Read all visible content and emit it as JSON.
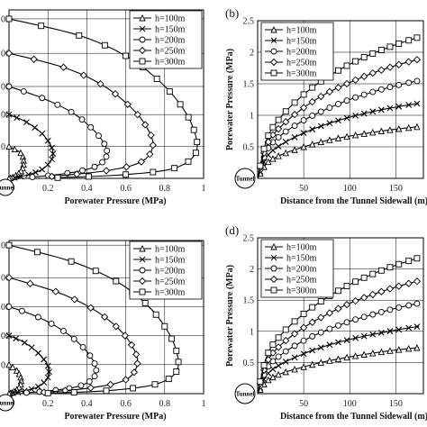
{
  "panel_labels": [
    "(b)",
    "(d)"
  ],
  "tunnel_label": "Tunnel",
  "chart_data": [
    {
      "panel": "a",
      "type": "line",
      "xlabel": "Porewater Pressure (MPa)",
      "ylabel": "",
      "xlim": [
        0,
        1
      ],
      "x_ticks": [
        "0.2",
        "0.4",
        "0.6",
        "0.8",
        "1"
      ],
      "y_ticks": [
        "00",
        "00",
        "00",
        "00",
        "0"
      ],
      "legend_position": "top-right",
      "series": [
        {
          "name": "h=100m",
          "marker": "triangle",
          "points": [
            [
              0,
              0.25
            ],
            [
              0.06,
              0.2
            ],
            [
              0.075,
              0.14
            ],
            [
              0.07,
              0.08
            ],
            [
              0.05,
              0.04
            ],
            [
              0.02,
              0.01
            ],
            [
              0,
              0
            ]
          ]
        },
        {
          "name": "h=150m",
          "marker": "x",
          "points": [
            [
              0,
              0.5
            ],
            [
              0.09,
              0.44
            ],
            [
              0.17,
              0.35
            ],
            [
              0.22,
              0.24
            ],
            [
              0.22,
              0.15
            ],
            [
              0.17,
              0.07
            ],
            [
              0.1,
              0.03
            ],
            [
              0.03,
              0.005
            ]
          ]
        },
        {
          "name": "h=200m",
          "marker": "circle",
          "points": [
            [
              0,
              0.72
            ],
            [
              0.17,
              0.63
            ],
            [
              0.32,
              0.52
            ],
            [
              0.42,
              0.4
            ],
            [
              0.49,
              0.27
            ],
            [
              0.5,
              0.17
            ],
            [
              0.44,
              0.09
            ],
            [
              0.3,
              0.04
            ],
            [
              0.12,
              0.01
            ]
          ]
        },
        {
          "name": "h=250m",
          "marker": "diamond",
          "points": [
            [
              0,
              0.98
            ],
            [
              0.28,
              0.87
            ],
            [
              0.47,
              0.74
            ],
            [
              0.61,
              0.58
            ],
            [
              0.7,
              0.42
            ],
            [
              0.74,
              0.26
            ],
            [
              0.68,
              0.13
            ],
            [
              0.5,
              0.06
            ],
            [
              0.22,
              0.015
            ]
          ]
        },
        {
          "name": "h=300m",
          "marker": "square",
          "points": [
            [
              0,
              1.25
            ],
            [
              0.36,
              1.12
            ],
            [
              0.6,
              0.96
            ],
            [
              0.76,
              0.78
            ],
            [
              0.88,
              0.58
            ],
            [
              0.95,
              0.38
            ],
            [
              0.96,
              0.2
            ],
            [
              0.85,
              0.08
            ],
            [
              0.6,
              0.03
            ],
            [
              0.25,
              0.005
            ]
          ]
        }
      ]
    },
    {
      "panel": "b",
      "type": "line",
      "xlabel": "Distance from the Tunnel Sidewall (m)",
      "ylabel": "Porewater Pressure (MPa)",
      "xlim": [
        0,
        180
      ],
      "ylim": [
        0,
        2.5
      ],
      "x_ticks": [
        "0",
        "50",
        "100",
        "150"
      ],
      "y_ticks": [
        "0",
        "0.5",
        "1",
        "1.5",
        "2",
        "2.5"
      ],
      "legend_position": "top-left",
      "series": [
        {
          "name": "h=100m",
          "marker": "triangle",
          "points": [
            [
              0,
              0
            ],
            [
              10,
              0.24
            ],
            [
              25,
              0.37
            ],
            [
              50,
              0.5
            ],
            [
              75,
              0.6
            ],
            [
              100,
              0.67
            ],
            [
              125,
              0.73
            ],
            [
              150,
              0.78
            ],
            [
              175,
              0.82
            ]
          ]
        },
        {
          "name": "h=150m",
          "marker": "x",
          "points": [
            [
              0,
              0
            ],
            [
              10,
              0.34
            ],
            [
              25,
              0.53
            ],
            [
              50,
              0.72
            ],
            [
              75,
              0.86
            ],
            [
              100,
              0.97
            ],
            [
              125,
              1.06
            ],
            [
              150,
              1.13
            ],
            [
              175,
              1.19
            ]
          ]
        },
        {
          "name": "h=200m",
          "marker": "circle",
          "points": [
            [
              0,
              0
            ],
            [
              10,
              0.44
            ],
            [
              25,
              0.68
            ],
            [
              50,
              0.92
            ],
            [
              75,
              1.1
            ],
            [
              100,
              1.25
            ],
            [
              125,
              1.37
            ],
            [
              150,
              1.47
            ],
            [
              175,
              1.55
            ]
          ]
        },
        {
          "name": "h=250m",
          "marker": "diamond",
          "points": [
            [
              0,
              0
            ],
            [
              10,
              0.53
            ],
            [
              25,
              0.82
            ],
            [
              50,
              1.12
            ],
            [
              75,
              1.35
            ],
            [
              100,
              1.52
            ],
            [
              125,
              1.67
            ],
            [
              150,
              1.79
            ],
            [
              175,
              1.89
            ]
          ]
        },
        {
          "name": "h=300m",
          "marker": "square",
          "points": [
            [
              0,
              0
            ],
            [
              10,
              0.62
            ],
            [
              25,
              0.97
            ],
            [
              50,
              1.33
            ],
            [
              75,
              1.6
            ],
            [
              100,
              1.81
            ],
            [
              125,
              1.98
            ],
            [
              150,
              2.12
            ],
            [
              175,
              2.24
            ]
          ]
        }
      ]
    },
    {
      "panel": "c",
      "type": "line",
      "xlabel": "Porewater Pressure (MPa)",
      "ylabel": "",
      "xlim": [
        0,
        1
      ],
      "x_ticks": [
        "0.2",
        "0.4",
        "0.6",
        "0.8",
        "1"
      ],
      "y_ticks": [
        "00",
        "00",
        "00",
        "00",
        "0"
      ],
      "legend_position": "top-right",
      "series": [
        {
          "name": "h=100m",
          "marker": "triangle",
          "points": [
            [
              0,
              0.25
            ],
            [
              0.04,
              0.2
            ],
            [
              0.06,
              0.14
            ],
            [
              0.06,
              0.08
            ],
            [
              0.04,
              0.035
            ],
            [
              0.015,
              0.01
            ],
            [
              0,
              0
            ]
          ]
        },
        {
          "name": "h=150m",
          "marker": "x",
          "points": [
            [
              0,
              0.5
            ],
            [
              0.08,
              0.44
            ],
            [
              0.15,
              0.35
            ],
            [
              0.2,
              0.24
            ],
            [
              0.2,
              0.14
            ],
            [
              0.15,
              0.06
            ],
            [
              0.08,
              0.025
            ],
            [
              0.02,
              0.005
            ]
          ]
        },
        {
          "name": "h=200m",
          "marker": "circle",
          "points": [
            [
              0,
              0.75
            ],
            [
              0.15,
              0.66
            ],
            [
              0.28,
              0.54
            ],
            [
              0.38,
              0.4
            ],
            [
              0.44,
              0.26
            ],
            [
              0.44,
              0.15
            ],
            [
              0.37,
              0.07
            ],
            [
              0.24,
              0.03
            ],
            [
              0.09,
              0.008
            ]
          ]
        },
        {
          "name": "h=250m",
          "marker": "diamond",
          "points": [
            [
              0,
              1.0
            ],
            [
              0.24,
              0.88
            ],
            [
              0.42,
              0.74
            ],
            [
              0.55,
              0.58
            ],
            [
              0.63,
              0.42
            ],
            [
              0.66,
              0.26
            ],
            [
              0.6,
              0.12
            ],
            [
              0.42,
              0.05
            ],
            [
              0.18,
              0.012
            ]
          ]
        },
        {
          "name": "h=300m",
          "marker": "square",
          "points": [
            [
              0,
              1.28
            ],
            [
              0.32,
              1.14
            ],
            [
              0.55,
              0.97
            ],
            [
              0.7,
              0.78
            ],
            [
              0.8,
              0.58
            ],
            [
              0.86,
              0.37
            ],
            [
              0.86,
              0.19
            ],
            [
              0.75,
              0.08
            ],
            [
              0.5,
              0.025
            ],
            [
              0.2,
              0.005
            ]
          ]
        }
      ]
    },
    {
      "panel": "d",
      "type": "line",
      "xlabel": "Distance from the Tunnel Sidewall (m)",
      "ylabel": "Porewater Pressure (MPa)",
      "xlim": [
        0,
        180
      ],
      "ylim": [
        0,
        2.5
      ],
      "x_ticks": [
        "0",
        "50",
        "100",
        "150"
      ],
      "y_ticks": [
        "0",
        "0.5",
        "1",
        "1.5",
        "2",
        "2.5"
      ],
      "legend_position": "top-left",
      "series": [
        {
          "name": "h=100m",
          "marker": "triangle",
          "points": [
            [
              0,
              0
            ],
            [
              10,
              0.2
            ],
            [
              25,
              0.32
            ],
            [
              50,
              0.43
            ],
            [
              75,
              0.52
            ],
            [
              100,
              0.59
            ],
            [
              125,
              0.65
            ],
            [
              150,
              0.7
            ],
            [
              175,
              0.74
            ]
          ]
        },
        {
          "name": "h=150m",
          "marker": "x",
          "points": [
            [
              0,
              0
            ],
            [
              10,
              0.3
            ],
            [
              25,
              0.47
            ],
            [
              50,
              0.64
            ],
            [
              75,
              0.77
            ],
            [
              100,
              0.87
            ],
            [
              125,
              0.95
            ],
            [
              150,
              1.02
            ],
            [
              175,
              1.08
            ]
          ]
        },
        {
          "name": "h=200m",
          "marker": "circle",
          "points": [
            [
              0,
              0
            ],
            [
              10,
              0.4
            ],
            [
              25,
              0.62
            ],
            [
              50,
              0.85
            ],
            [
              75,
              1.02
            ],
            [
              100,
              1.16
            ],
            [
              125,
              1.27
            ],
            [
              150,
              1.37
            ],
            [
              175,
              1.45
            ]
          ]
        },
        {
          "name": "h=250m",
          "marker": "diamond",
          "points": [
            [
              0,
              0
            ],
            [
              10,
              0.5
            ],
            [
              25,
              0.78
            ],
            [
              50,
              1.06
            ],
            [
              75,
              1.27
            ],
            [
              100,
              1.45
            ],
            [
              125,
              1.59
            ],
            [
              150,
              1.71
            ],
            [
              175,
              1.81
            ]
          ]
        },
        {
          "name": "h=300m",
          "marker": "square",
          "points": [
            [
              0,
              0
            ],
            [
              10,
              0.6
            ],
            [
              25,
              0.94
            ],
            [
              50,
              1.28
            ],
            [
              75,
              1.54
            ],
            [
              100,
              1.75
            ],
            [
              125,
              1.92
            ],
            [
              150,
              2.06
            ],
            [
              175,
              2.18
            ]
          ]
        }
      ]
    }
  ]
}
